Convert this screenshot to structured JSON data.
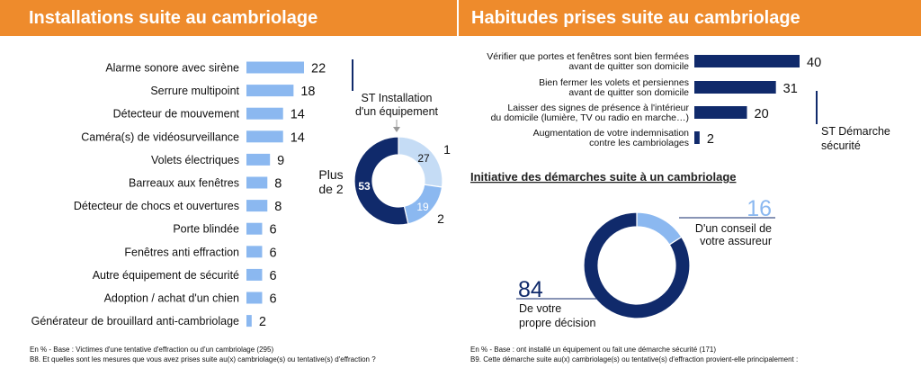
{
  "panels": {
    "left_title": "Installations suite au cambriolage",
    "right_title": "Habitudes prises suite au cambriolage"
  },
  "colors": {
    "header": "#ee8b2c",
    "light": "#8bb8f0",
    "lighter": "#c5dcf5",
    "dark": "#102a6b"
  },
  "chart_data": [
    {
      "type": "bar",
      "orientation": "horizontal",
      "categories": [
        "Alarme sonore avec sirène",
        "Serrure multipoint",
        "Détecteur de mouvement",
        "Caméra(s) de vidéosurveillance",
        "Volets électriques",
        "Barreaux aux fenêtres",
        "Détecteur de chocs et ouvertures",
        "Porte blindée",
        "Fenêtres  anti effraction",
        "Autre équipement de sécurité",
        "Adoption / achat d'un chien",
        "Générateur de brouillard anti-cambriolage"
      ],
      "values": [
        22,
        18,
        14,
        14,
        9,
        8,
        8,
        6,
        6,
        6,
        6,
        2
      ],
      "bracket_label": "ST Installation d'un équipement"
    },
    {
      "type": "pie",
      "donut": true,
      "labels": [
        "1",
        "2",
        "Plus de 2"
      ],
      "values": [
        27,
        19,
        53
      ]
    },
    {
      "type": "bar",
      "orientation": "horizontal",
      "categories": [
        "Vérifier que portes et fenêtres sont bien fermées avant de quitter son domicile",
        "Bien fermer les volets et persiennes avant de quitter son domicile",
        "Laisser des signes de présence à l'intérieur du domicile  (lumière, TV ou radio en marche…)",
        "Augmentation de votre indemnisation contre les cambriolages"
      ],
      "category_lines": [
        [
          "Vérifier que portes et fenêtres sont bien fermées",
          "avant de quitter son domicile"
        ],
        [
          "Bien fermer les volets et persiennes",
          "avant de quitter son domicile"
        ],
        [
          "Laisser des signes de présence à l'intérieur",
          "du domicile  (lumière, TV ou radio en marche…)"
        ],
        [
          "Augmentation de votre indemnisation",
          "contre les cambriolages"
        ]
      ],
      "values": [
        40,
        31,
        20,
        2
      ],
      "bracket_label": "ST Démarche sécurité"
    },
    {
      "type": "pie",
      "donut": true,
      "title": "Initiative des démarches suite à un cambriolage",
      "labels": [
        "D'un conseil de votre assureur",
        "De votre propre décision"
      ],
      "values": [
        16,
        84
      ]
    }
  ],
  "left_bracket_lines": [
    "ST Installation",
    "d'un équipement"
  ],
  "right_bracket_lines": [
    "ST Démarche",
    "sécurité"
  ],
  "donut1_plus_lines": [
    "Plus",
    "de 2"
  ],
  "donut2_lines": {
    "assureur": [
      "D'un conseil de",
      "votre assureur"
    ],
    "propre": [
      "De votre",
      "propre décision"
    ]
  },
  "notes": {
    "left_base": "En % - Base : Victimes d'une tentative d'effraction ou d'un cambriolage (295)",
    "left_question": "B8. Et quelles sont les mesures que vous avez prises suite au(x) cambriolage(s) ou tentative(s) d'effraction ?",
    "right_base": "En % - Base : ont installé un équipement ou fait une démarche sécurité (171)",
    "right_question": "B9. Cette démarche suite au(x) cambriolage(s) ou tentative(s) d'effraction provient-elle principalement :"
  }
}
